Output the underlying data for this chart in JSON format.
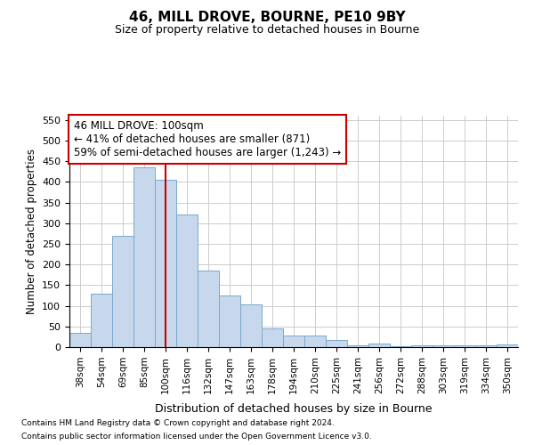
{
  "title": "46, MILL DROVE, BOURNE, PE10 9BY",
  "subtitle": "Size of property relative to detached houses in Bourne",
  "xlabel": "Distribution of detached houses by size in Bourne",
  "ylabel": "Number of detached properties",
  "bar_labels": [
    "38sqm",
    "54sqm",
    "69sqm",
    "85sqm",
    "100sqm",
    "116sqm",
    "132sqm",
    "147sqm",
    "163sqm",
    "178sqm",
    "194sqm",
    "210sqm",
    "225sqm",
    "241sqm",
    "256sqm",
    "272sqm",
    "288sqm",
    "303sqm",
    "319sqm",
    "334sqm",
    "350sqm"
  ],
  "bar_values": [
    35,
    130,
    270,
    435,
    405,
    320,
    185,
    125,
    103,
    45,
    28,
    28,
    17,
    5,
    8,
    3,
    4,
    4,
    4,
    4,
    7
  ],
  "bar_color": "#c8d8ec",
  "bar_edge_color": "#7aa8cc",
  "vline_x_index": 4,
  "vline_color": "#cc0000",
  "ylim": [
    0,
    560
  ],
  "yticks": [
    0,
    50,
    100,
    150,
    200,
    250,
    300,
    350,
    400,
    450,
    500,
    550
  ],
  "annotation_line1": "46 MILL DROVE: 100sqm",
  "annotation_line2": "← 41% of detached houses are smaller (871)",
  "annotation_line3": "59% of semi-detached houses are larger (1,243) →",
  "annotation_box_color": "#ffffff",
  "annotation_box_edge_color": "#cc0000",
  "footer_line1": "Contains HM Land Registry data © Crown copyright and database right 2024.",
  "footer_line2": "Contains public sector information licensed under the Open Government Licence v3.0.",
  "background_color": "#ffffff",
  "grid_color": "#cccccc"
}
